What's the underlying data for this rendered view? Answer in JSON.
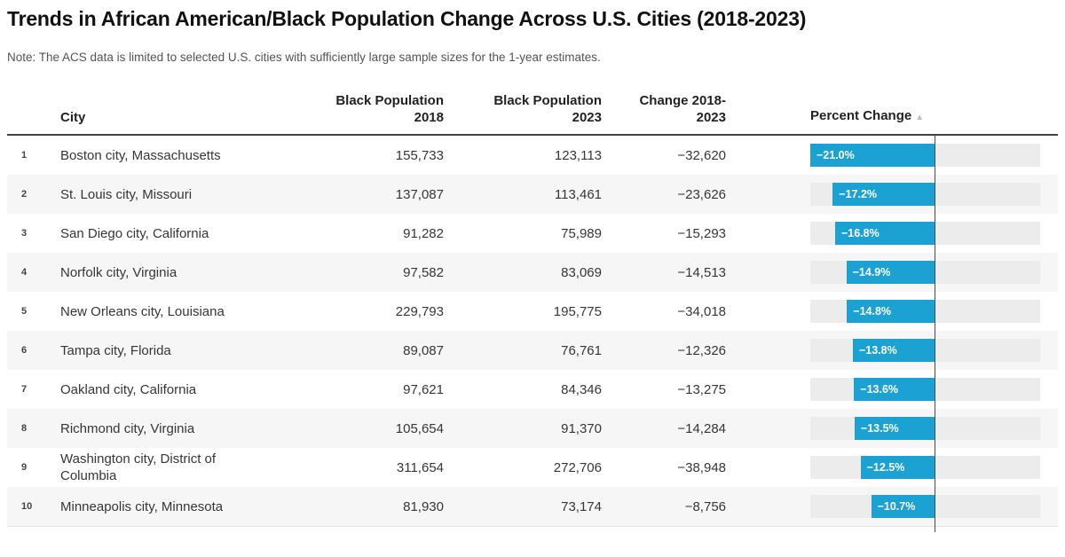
{
  "title": "Trends in African American/Black Population Change Across U.S. Cities (2018-2023)",
  "note": "Note: The ACS data is limited to selected U.S. cities with sufficiently large sample sizes for the 1-year estimates.",
  "colors": {
    "bar": "#1CA2D2",
    "track": "#ECECEC",
    "stripe": "#F6F6F6",
    "zero_line": "#4A4A4A"
  },
  "table": {
    "header": {
      "city": "City",
      "pop2018_l1": "Black Population",
      "pop2018_l2": "2018",
      "pop2023_l1": "Black Population",
      "pop2023_l2": "2023",
      "change_l1": "Change 2018-",
      "change_l2": "2023",
      "percent": "Percent Change",
      "sort_icon": "▲"
    },
    "rows": [
      {
        "rank": "1",
        "city": "Boston city, Massachusetts",
        "pop2018": "155,733",
        "pop2023": "123,113",
        "change": "−32,620",
        "percent_label": "−21.0%",
        "percent_value": -21.0
      },
      {
        "rank": "2",
        "city": "St. Louis city, Missouri",
        "pop2018": "137,087",
        "pop2023": "113,461",
        "change": "−23,626",
        "percent_label": "−17.2%",
        "percent_value": -17.2
      },
      {
        "rank": "3",
        "city": "San Diego city, California",
        "pop2018": "91,282",
        "pop2023": "75,989",
        "change": "−15,293",
        "percent_label": "−16.8%",
        "percent_value": -16.8
      },
      {
        "rank": "4",
        "city": "Norfolk city, Virginia",
        "pop2018": "97,582",
        "pop2023": "83,069",
        "change": "−14,513",
        "percent_label": "−14.9%",
        "percent_value": -14.9
      },
      {
        "rank": "5",
        "city": "New Orleans city, Louisiana",
        "pop2018": "229,793",
        "pop2023": "195,775",
        "change": "−34,018",
        "percent_label": "−14.8%",
        "percent_value": -14.8
      },
      {
        "rank": "6",
        "city": "Tampa city, Florida",
        "pop2018": "89,087",
        "pop2023": "76,761",
        "change": "−12,326",
        "percent_label": "−13.8%",
        "percent_value": -13.8
      },
      {
        "rank": "7",
        "city": "Oakland city, California",
        "pop2018": "97,621",
        "pop2023": "84,346",
        "change": "−13,275",
        "percent_label": "−13.6%",
        "percent_value": -13.6
      },
      {
        "rank": "8",
        "city": "Richmond city, Virginia",
        "pop2018": "105,654",
        "pop2023": "91,370",
        "change": "−14,284",
        "percent_label": "−13.5%",
        "percent_value": -13.5
      },
      {
        "rank": "9",
        "city": "Washington city, District of Columbia",
        "pop2018": "311,654",
        "pop2023": "272,706",
        "change": "−38,948",
        "percent_label": "−12.5%",
        "percent_value": -12.5
      },
      {
        "rank": "10",
        "city": "Minneapolis city, Minnesota",
        "pop2018": "81,930",
        "pop2023": "73,174",
        "change": "−8,756",
        "percent_label": "−10.7%",
        "percent_value": -10.7
      }
    ]
  },
  "chart_data": {
    "type": "table",
    "title": "Trends in African American/Black Population Change Across U.S. Cities (2018-2023)",
    "note": "Note: The ACS data is limited to selected U.S. cities with sufficiently large sample sizes for the 1-year estimates.",
    "columns": [
      "Rank",
      "City",
      "Black Population 2018",
      "Black Population 2023",
      "Change 2018-2023",
      "Percent Change"
    ],
    "rows": [
      [
        1,
        "Boston city, Massachusetts",
        155733,
        123113,
        -32620,
        -21.0
      ],
      [
        2,
        "St. Louis city, Missouri",
        137087,
        113461,
        -23626,
        -17.2
      ],
      [
        3,
        "San Diego city, California",
        91282,
        75989,
        -15293,
        -16.8
      ],
      [
        4,
        "Norfolk city, Virginia",
        97582,
        83069,
        -14513,
        -14.9
      ],
      [
        5,
        "New Orleans city, Louisiana",
        229793,
        195775,
        -34018,
        -14.8
      ],
      [
        6,
        "Tampa city, Florida",
        89087,
        76761,
        -12326,
        -13.8
      ],
      [
        7,
        "Oakland city, California",
        97621,
        84346,
        -13275,
        -13.6
      ],
      [
        8,
        "Richmond city, Virginia",
        105654,
        91370,
        -14284,
        -13.5
      ],
      [
        9,
        "Washington city, District of Columbia",
        311654,
        272706,
        -38948,
        -12.5
      ],
      [
        10,
        "Minneapolis city, Minnesota",
        81930,
        73174,
        -8756,
        -10.7
      ]
    ],
    "embedded_bar": {
      "column": "Percent Change",
      "type": "bar",
      "axis_min": -21.0,
      "axis_max": 17.9,
      "zero_line": true,
      "sort": "ascending",
      "bar_color": "#1CA2D2",
      "track_color": "#ECECEC"
    }
  }
}
